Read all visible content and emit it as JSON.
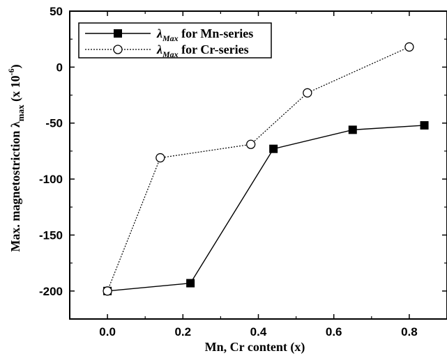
{
  "chart_data": {
    "type": "line",
    "xlabel": "Mn, Cr content (x)",
    "ylabel": {
      "prefix": "Max. magnetostriction ",
      "symbol": "λ",
      "subscript": "max",
      "unit_open": " (x 10",
      "unit_exp": "-6",
      "unit_close": ")"
    },
    "xlim": [
      -0.1,
      0.9
    ],
    "ylim": [
      -225,
      50
    ],
    "xticks": [
      0.0,
      0.2,
      0.4,
      0.6,
      0.8
    ],
    "xtick_labels": [
      "0.0",
      "0.2",
      "0.4",
      "0.6",
      "0.8"
    ],
    "yticks": [
      50,
      0,
      -50,
      -100,
      -150,
      -200
    ],
    "ytick_labels": [
      "50",
      "0",
      "-50",
      "-100",
      "-150",
      "-200"
    ],
    "grid": false,
    "legend_position": "top-left",
    "series": [
      {
        "symbol": "λ",
        "subscript": "Max",
        "label_rest": " for Mn-series",
        "marker": "filled-square",
        "line": "solid",
        "color": "#000000",
        "x": [
          0.0,
          0.22,
          0.44,
          0.65,
          0.84
        ],
        "y": [
          -200,
          -193,
          -73,
          -56,
          -52
        ]
      },
      {
        "symbol": "λ",
        "subscript": "Max",
        "label_rest": " for Cr-series",
        "marker": "open-circle",
        "line": "dotted",
        "color": "#000000",
        "x": [
          0.0,
          0.14,
          0.38,
          0.53,
          0.8
        ],
        "y": [
          -200,
          -81,
          -69,
          -23,
          18
        ]
      }
    ]
  }
}
